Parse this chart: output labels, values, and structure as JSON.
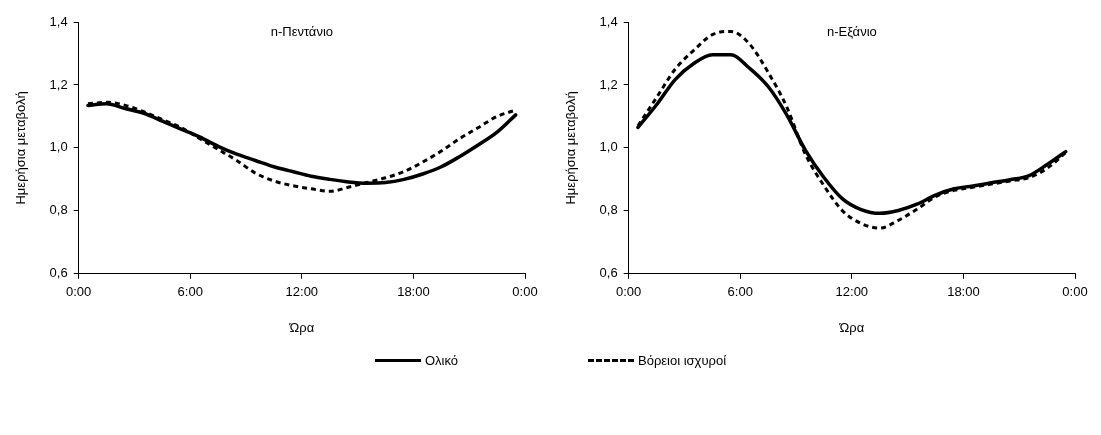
{
  "chart_data": [
    {
      "type": "line",
      "title": "n-Πεντάνιο",
      "xlabel": "Ώρα",
      "ylabel": "Ημερήσια μεταβολή",
      "x": [
        0.5,
        1.5,
        2.5,
        3.5,
        4.5,
        5.5,
        6.5,
        7.5,
        8.5,
        9.5,
        10.5,
        11.5,
        12.5,
        13.5,
        14.5,
        15.5,
        16.5,
        17.5,
        18.5,
        19.5,
        20.5,
        21.5,
        22.5,
        23.5
      ],
      "series": [
        {
          "name": "Ολικό",
          "color": "#000000",
          "line_style": "solid",
          "values": [
            1.135,
            1.14,
            1.125,
            1.11,
            1.085,
            1.06,
            1.035,
            1.005,
            0.98,
            0.96,
            0.94,
            0.925,
            0.91,
            0.9,
            0.892,
            0.888,
            0.89,
            0.9,
            0.917,
            0.94,
            0.973,
            1.01,
            1.05,
            1.105
          ]
        },
        {
          "name": "Βόρειοι ισχυροί",
          "color": "#000000",
          "line_style": "dashed",
          "values": [
            1.14,
            1.145,
            1.135,
            1.115,
            1.09,
            1.065,
            1.03,
            0.995,
            0.96,
            0.92,
            0.895,
            0.88,
            0.87,
            0.862,
            0.875,
            0.89,
            0.905,
            0.925,
            0.955,
            0.99,
            1.03,
            1.065,
            1.1,
            1.12
          ]
        }
      ],
      "xlim": [
        0,
        24
      ],
      "xticks": [
        {
          "value": 0,
          "label": "0:00"
        },
        {
          "value": 6,
          "label": "6:00"
        },
        {
          "value": 12,
          "label": "12:00"
        },
        {
          "value": 18,
          "label": "18:00"
        },
        {
          "value": 24,
          "label": "0:00"
        }
      ],
      "ylim": [
        0.6,
        1.4
      ],
      "yticks": [
        {
          "value": 0.6,
          "label": "0,6"
        },
        {
          "value": 0.8,
          "label": "0,8"
        },
        {
          "value": 1.0,
          "label": "1,0"
        },
        {
          "value": 1.2,
          "label": "1,2"
        },
        {
          "value": 1.4,
          "label": "1,4"
        }
      ],
      "grid": false,
      "legend": "bottom",
      "marker": "none"
    },
    {
      "type": "line",
      "title": "n-Εξάνιο",
      "xlabel": "Ώρα",
      "ylabel": "Ημερήσια μεταβολή",
      "x": [
        0.5,
        1.5,
        2.5,
        3.5,
        4.5,
        5.5,
        6.5,
        7.5,
        8.5,
        9.5,
        10.5,
        11.5,
        12.5,
        13.5,
        14.5,
        15.5,
        16.5,
        17.5,
        18.5,
        19.5,
        20.5,
        21.5,
        22.5,
        23.5
      ],
      "series": [
        {
          "color": "#000000",
          "line_style": "solid",
          "values": [
            1.065,
            1.137,
            1.217,
            1.268,
            1.296,
            1.296,
            1.253,
            1.195,
            1.105,
            0.993,
            0.906,
            0.838,
            0.804,
            0.792,
            0.801,
            0.821,
            0.85,
            0.87,
            0.879,
            0.889,
            0.899,
            0.911,
            0.947,
            0.988
          ]
        },
        {
          "color": "#000000",
          "line_style": "dashed",
          "values": [
            1.07,
            1.16,
            1.25,
            1.31,
            1.36,
            1.37,
            1.33,
            1.24,
            1.13,
            0.98,
            0.88,
            0.8,
            0.76,
            0.745,
            0.77,
            0.805,
            0.845,
            0.865,
            0.875,
            0.885,
            0.895,
            0.905,
            0.935,
            0.985
          ]
        }
      ],
      "xlim": [
        0,
        24
      ],
      "xticks": [
        {
          "value": 0,
          "label": "0:00"
        },
        {
          "value": 6,
          "label": "6:00"
        },
        {
          "value": 12,
          "label": "12:00"
        },
        {
          "value": 18,
          "label": "18:00"
        },
        {
          "value": 24,
          "label": "0:00"
        }
      ],
      "ylim": [
        0.6,
        1.4
      ],
      "yticks": [
        {
          "value": 0.6,
          "label": "0,6"
        },
        {
          "value": 0.8,
          "label": "0,8"
        },
        {
          "value": 1.0,
          "label": "1,0"
        },
        {
          "value": 1.2,
          "label": "1,2"
        },
        {
          "value": 1.4,
          "label": "1,4"
        }
      ],
      "grid": false,
      "marker": "none"
    }
  ]
}
